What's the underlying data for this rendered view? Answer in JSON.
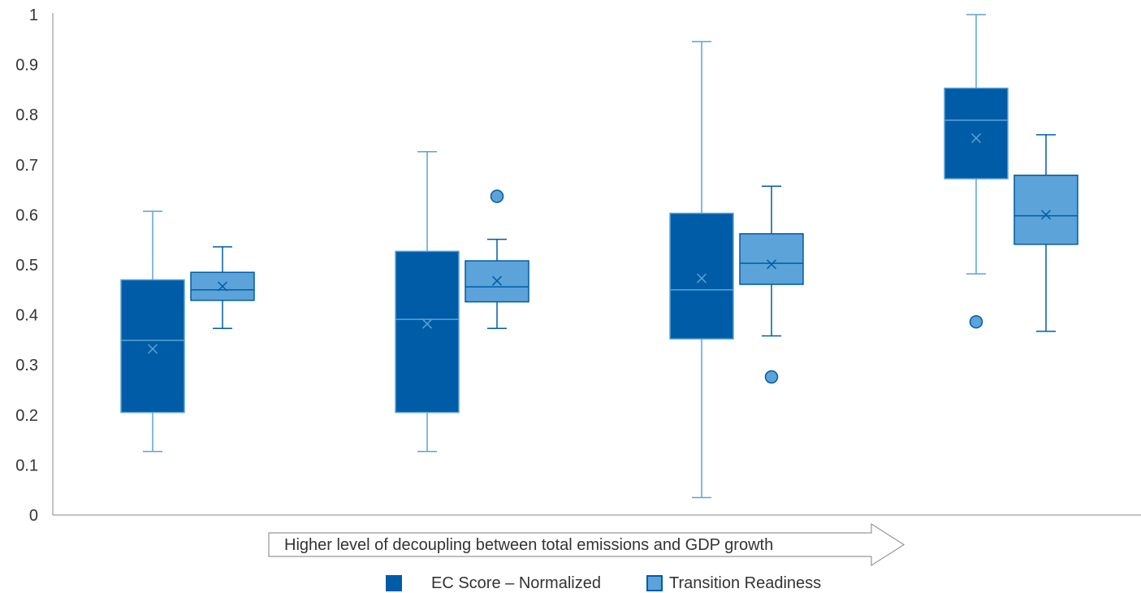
{
  "chart_data": {
    "type": "boxplot",
    "title": "",
    "ylim": [
      0,
      1
    ],
    "y_ticks": [
      "0",
      "0.1",
      "0.2",
      "0.3",
      "0.4",
      "0.5",
      "0.6",
      "0.7",
      "0.8",
      "0.9",
      "1"
    ],
    "x_axis_arrow_label": "Higher level of decoupling between total emissions and GDP growth",
    "grid": false,
    "legend_position": "bottom",
    "series": [
      {
        "name": "EC Score – Normalized",
        "color": "#005ca6",
        "groups": [
          {
            "min": 0.127,
            "q1": 0.205,
            "median": 0.349,
            "q3": 0.47,
            "max": 0.607,
            "mean": 0.332,
            "outliers": []
          },
          {
            "min": 0.127,
            "q1": 0.205,
            "median": 0.391,
            "q3": 0.527,
            "max": 0.726,
            "mean": 0.382,
            "outliers": []
          },
          {
            "min": 0.035,
            "q1": 0.352,
            "median": 0.45,
            "q3": 0.603,
            "max": 0.946,
            "mean": 0.473,
            "outliers": []
          },
          {
            "min": 0.482,
            "q1": 0.672,
            "median": 0.789,
            "q3": 0.853,
            "max": 1.0,
            "mean": 0.753,
            "outliers": [
              0.386
            ]
          }
        ]
      },
      {
        "name": "Transition Readiness",
        "color": "#5ba3d9",
        "groups": [
          {
            "min": 0.373,
            "q1": 0.429,
            "median": 0.45,
            "q3": 0.485,
            "max": 0.536,
            "mean": 0.457,
            "outliers": []
          },
          {
            "min": 0.373,
            "q1": 0.426,
            "median": 0.456,
            "q3": 0.508,
            "max": 0.551,
            "mean": 0.468,
            "outliers": [
              0.637
            ]
          },
          {
            "min": 0.358,
            "q1": 0.461,
            "median": 0.503,
            "q3": 0.562,
            "max": 0.657,
            "mean": 0.501,
            "outliers": [
              0.276
            ]
          },
          {
            "min": 0.367,
            "q1": 0.541,
            "median": 0.598,
            "q3": 0.679,
            "max": 0.76,
            "mean": 0.6,
            "outliers": []
          }
        ]
      }
    ]
  }
}
